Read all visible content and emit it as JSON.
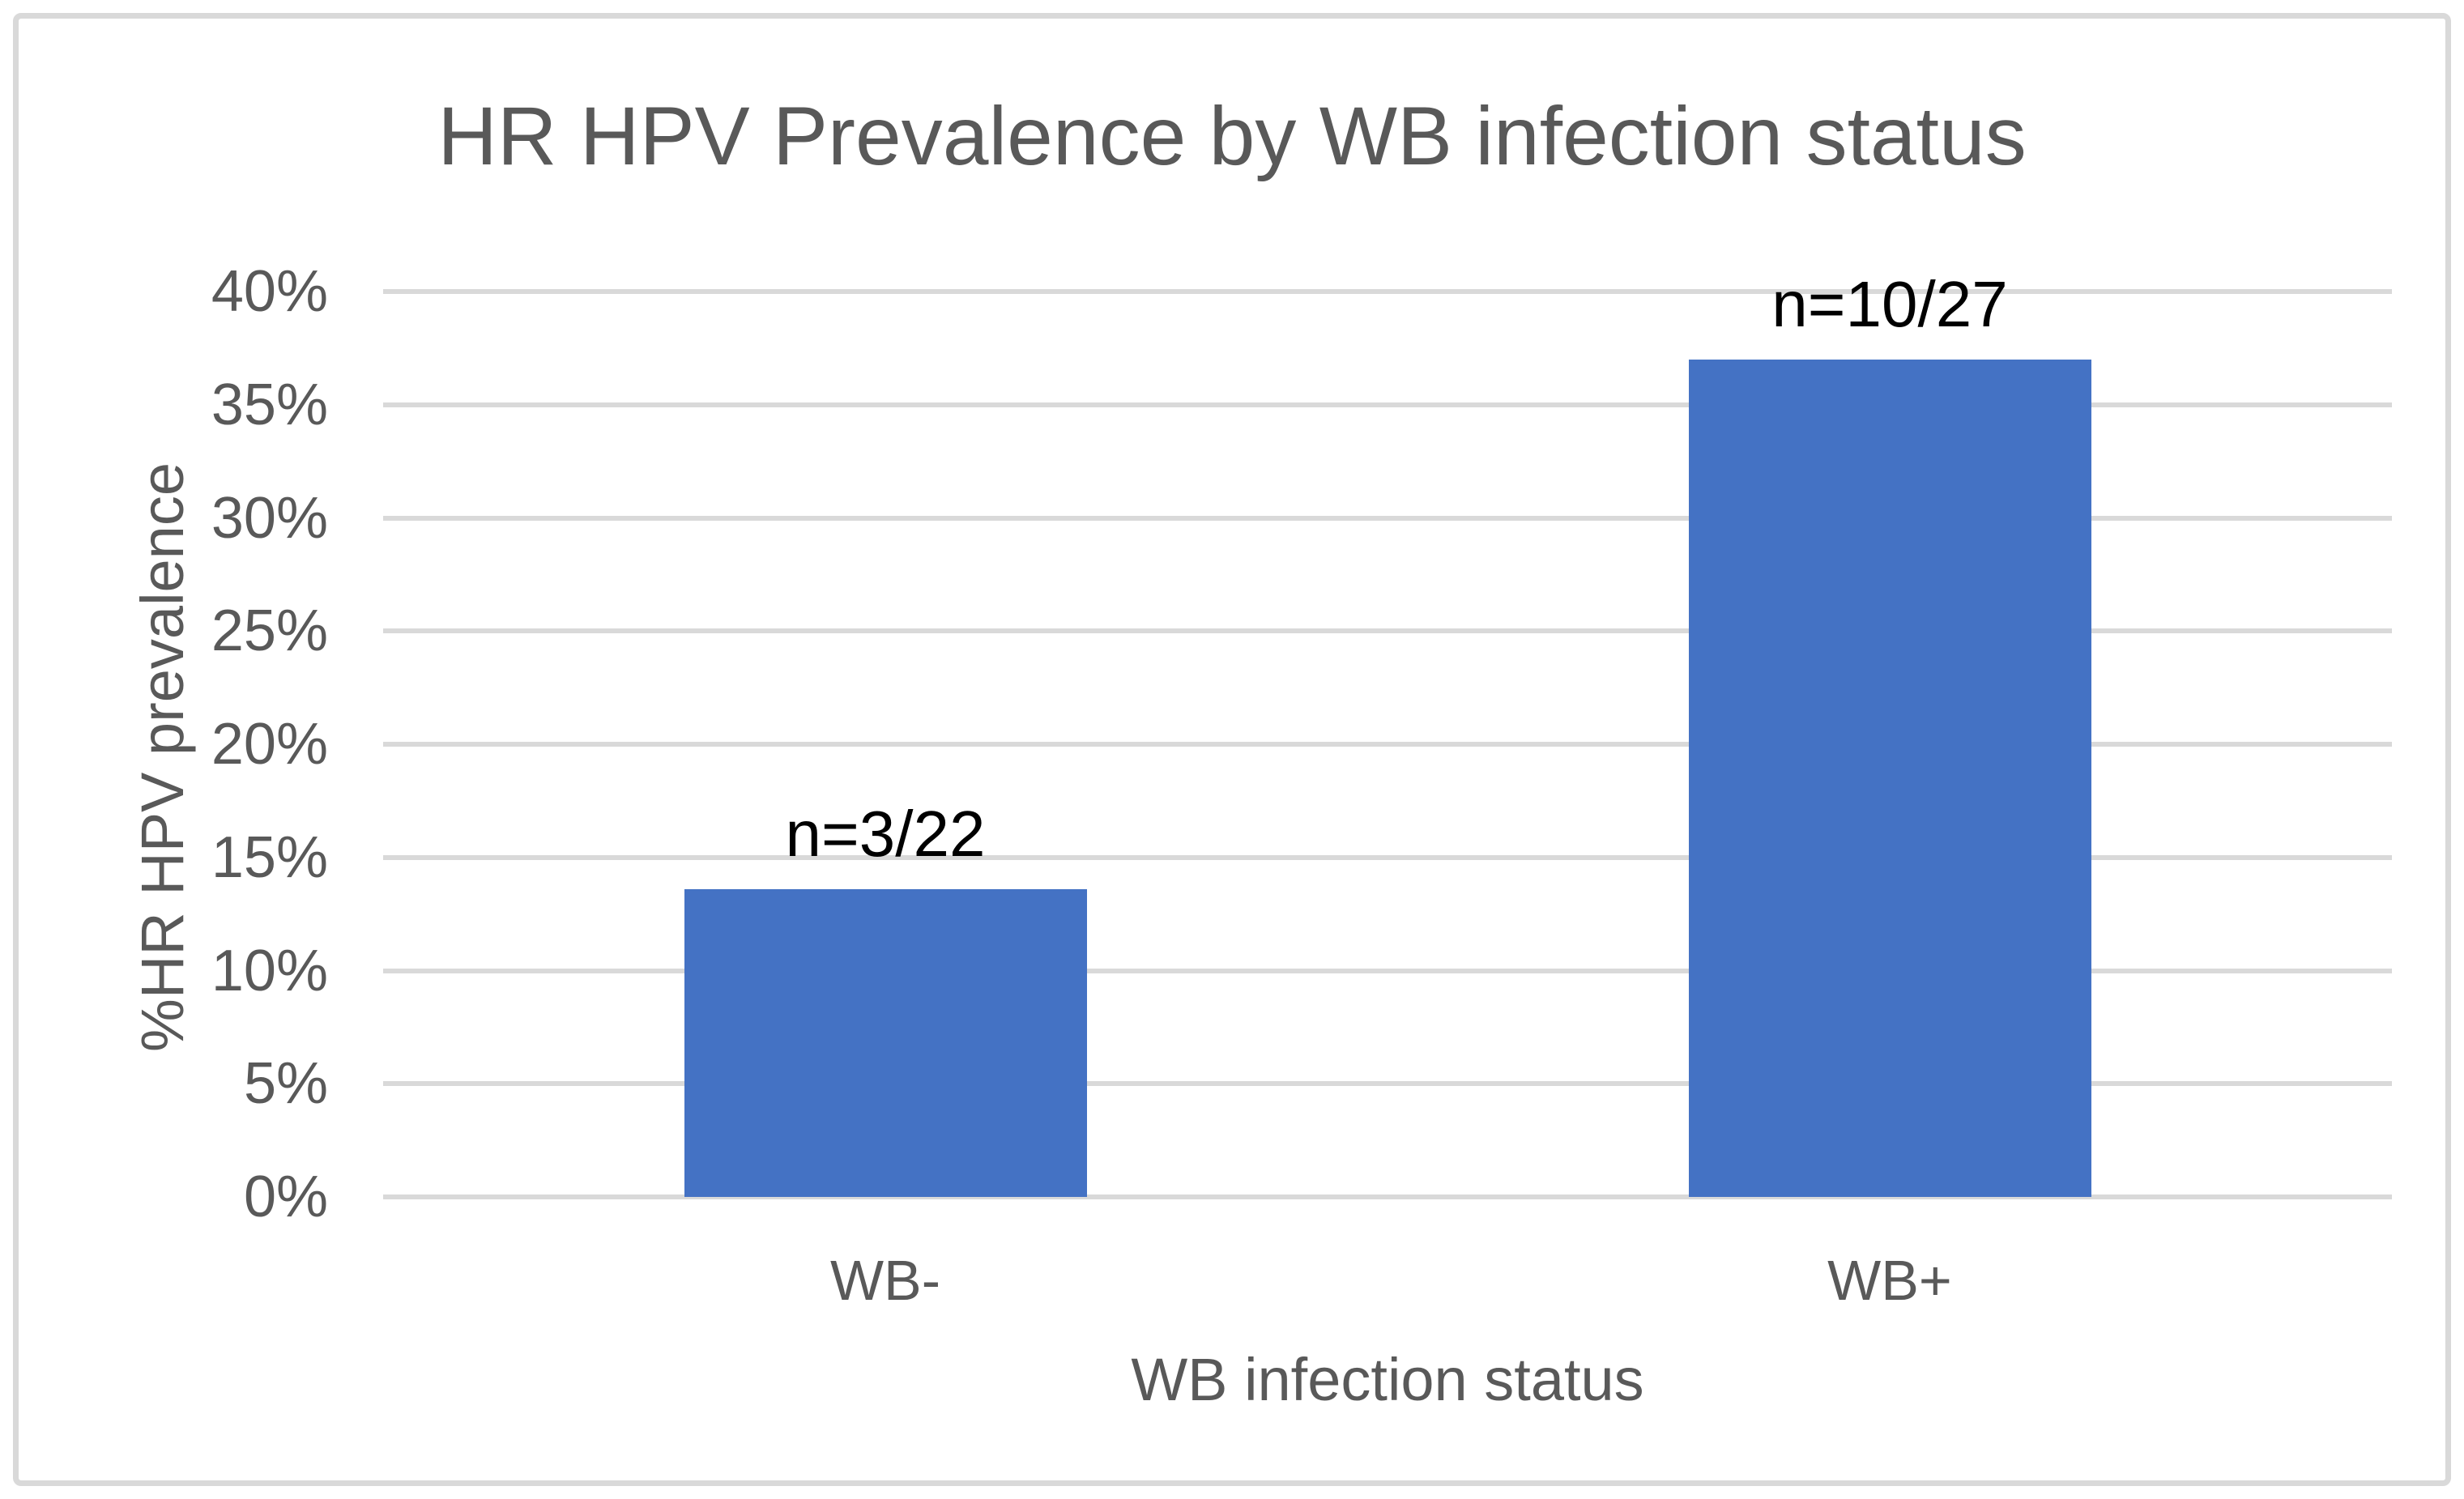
{
  "chart_data": {
    "type": "bar",
    "title": "HR HPV Prevalence by WB infection status",
    "xlabel": "WB infection status",
    "ylabel": "%HR HPV prevalence",
    "categories": [
      "WB-",
      "WB+"
    ],
    "series": [
      {
        "name": "%HR HPV prevalence",
        "values_pct": [
          13.6,
          37.0
        ],
        "data_labels": [
          "n=3/22",
          "n=10/27"
        ]
      }
    ],
    "ylim": [
      0,
      40
    ],
    "yticks": [
      "0%",
      "5%",
      "10%",
      "15%",
      "20%",
      "25%",
      "30%",
      "35%",
      "40%"
    ],
    "grid": true,
    "legend": false,
    "colors": {
      "bar": "#4472C4",
      "gridline": "#D9D9D9",
      "axis_text": "#595959",
      "data_label": "#000000",
      "border": "#D9D9D9",
      "background": "#FFFFFF"
    }
  }
}
